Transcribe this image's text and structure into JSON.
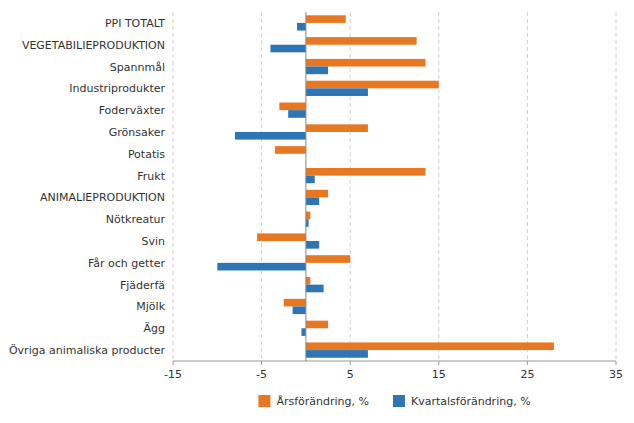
{
  "chart_data": {
    "type": "bar",
    "orientation": "horizontal",
    "categories": [
      "PPI TOTALT",
      "VEGETABILIEPRODUKTION",
      "Spannmål",
      "Industriprodukter",
      "Fodervӓxter",
      "Grönsaker",
      "Potatis",
      "Frukt",
      "ANIMALIEPRODUKTION",
      "Nötkreatur",
      "Svin",
      "Får och getter",
      "Fjäderfä",
      "Mjölk",
      "Ägg",
      "Övriga animaliska producter"
    ],
    "series": [
      {
        "name": "Årsförändring, %",
        "color": "#E87722",
        "values": [
          4.5,
          12.5,
          13.5,
          15.0,
          -3.0,
          7.0,
          -3.5,
          13.5,
          2.5,
          0.5,
          -5.5,
          5.0,
          0.5,
          -2.5,
          2.5,
          28.0
        ]
      },
      {
        "name": "Kvartalsförändring, %",
        "color": "#2E75B6",
        "values": [
          -1.0,
          -4.0,
          2.5,
          7.0,
          -2.0,
          -8.0,
          0.0,
          1.0,
          1.5,
          0.3,
          1.5,
          -10.0,
          2.0,
          -1.5,
          -0.5,
          7.0
        ]
      }
    ],
    "xlim": [
      -15,
      35
    ],
    "xticks": [
      -15,
      -5,
      5,
      15,
      25,
      35
    ],
    "grid": true,
    "legend": "bottom"
  }
}
